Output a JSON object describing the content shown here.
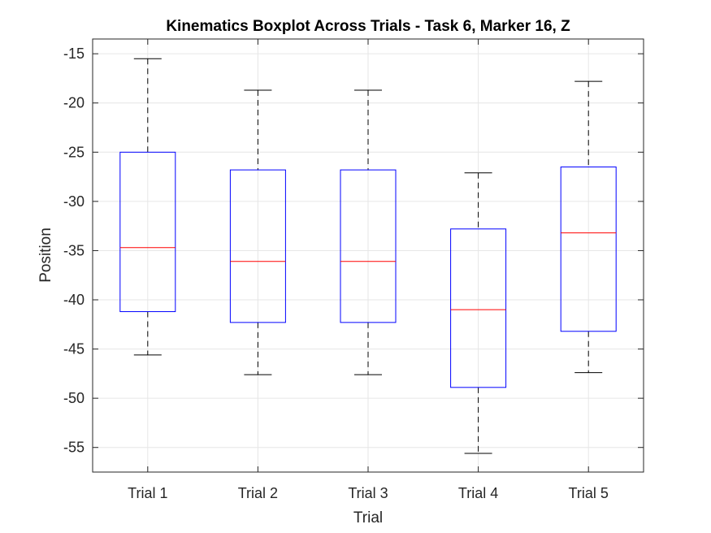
{
  "chart_data": {
    "type": "boxplot",
    "title": "Kinematics Boxplot Across Trials - Task 6, Marker 16, Z",
    "xlabel": "Trial",
    "ylabel": "Position",
    "categories": [
      "Trial 1",
      "Trial 2",
      "Trial 3",
      "Trial 4",
      "Trial 5"
    ],
    "ylim": [
      -57.5,
      -13.5
    ],
    "yticks": [
      -55,
      -50,
      -45,
      -40,
      -35,
      -30,
      -25,
      -20,
      -15
    ],
    "ytick_labels": [
      "-55",
      "-50",
      "-45",
      "-40",
      "-35",
      "-30",
      "-25",
      "-20",
      "-15"
    ],
    "grid": true,
    "boxes": [
      {
        "category": "Trial 1",
        "whisker_low": -45.6,
        "q1": -41.2,
        "median": -34.7,
        "q3": -25.0,
        "whisker_high": -15.5
      },
      {
        "category": "Trial 2",
        "whisker_low": -47.6,
        "q1": -42.3,
        "median": -36.1,
        "q3": -26.8,
        "whisker_high": -18.7
      },
      {
        "category": "Trial 3",
        "whisker_low": -47.6,
        "q1": -42.3,
        "median": -36.1,
        "q3": -26.8,
        "whisker_high": -18.7
      },
      {
        "category": "Trial 4",
        "whisker_low": -55.6,
        "q1": -48.9,
        "median": -41.0,
        "q3": -32.8,
        "whisker_high": -27.1
      },
      {
        "category": "Trial 5",
        "whisker_low": -47.4,
        "q1": -43.2,
        "median": -33.2,
        "q3": -26.5,
        "whisker_high": -17.8
      }
    ],
    "colors": {
      "box": "#0000ff",
      "median": "#ff0000",
      "whisker": "#000000",
      "grid": "#e6e6e6",
      "axes": "#262626"
    }
  }
}
